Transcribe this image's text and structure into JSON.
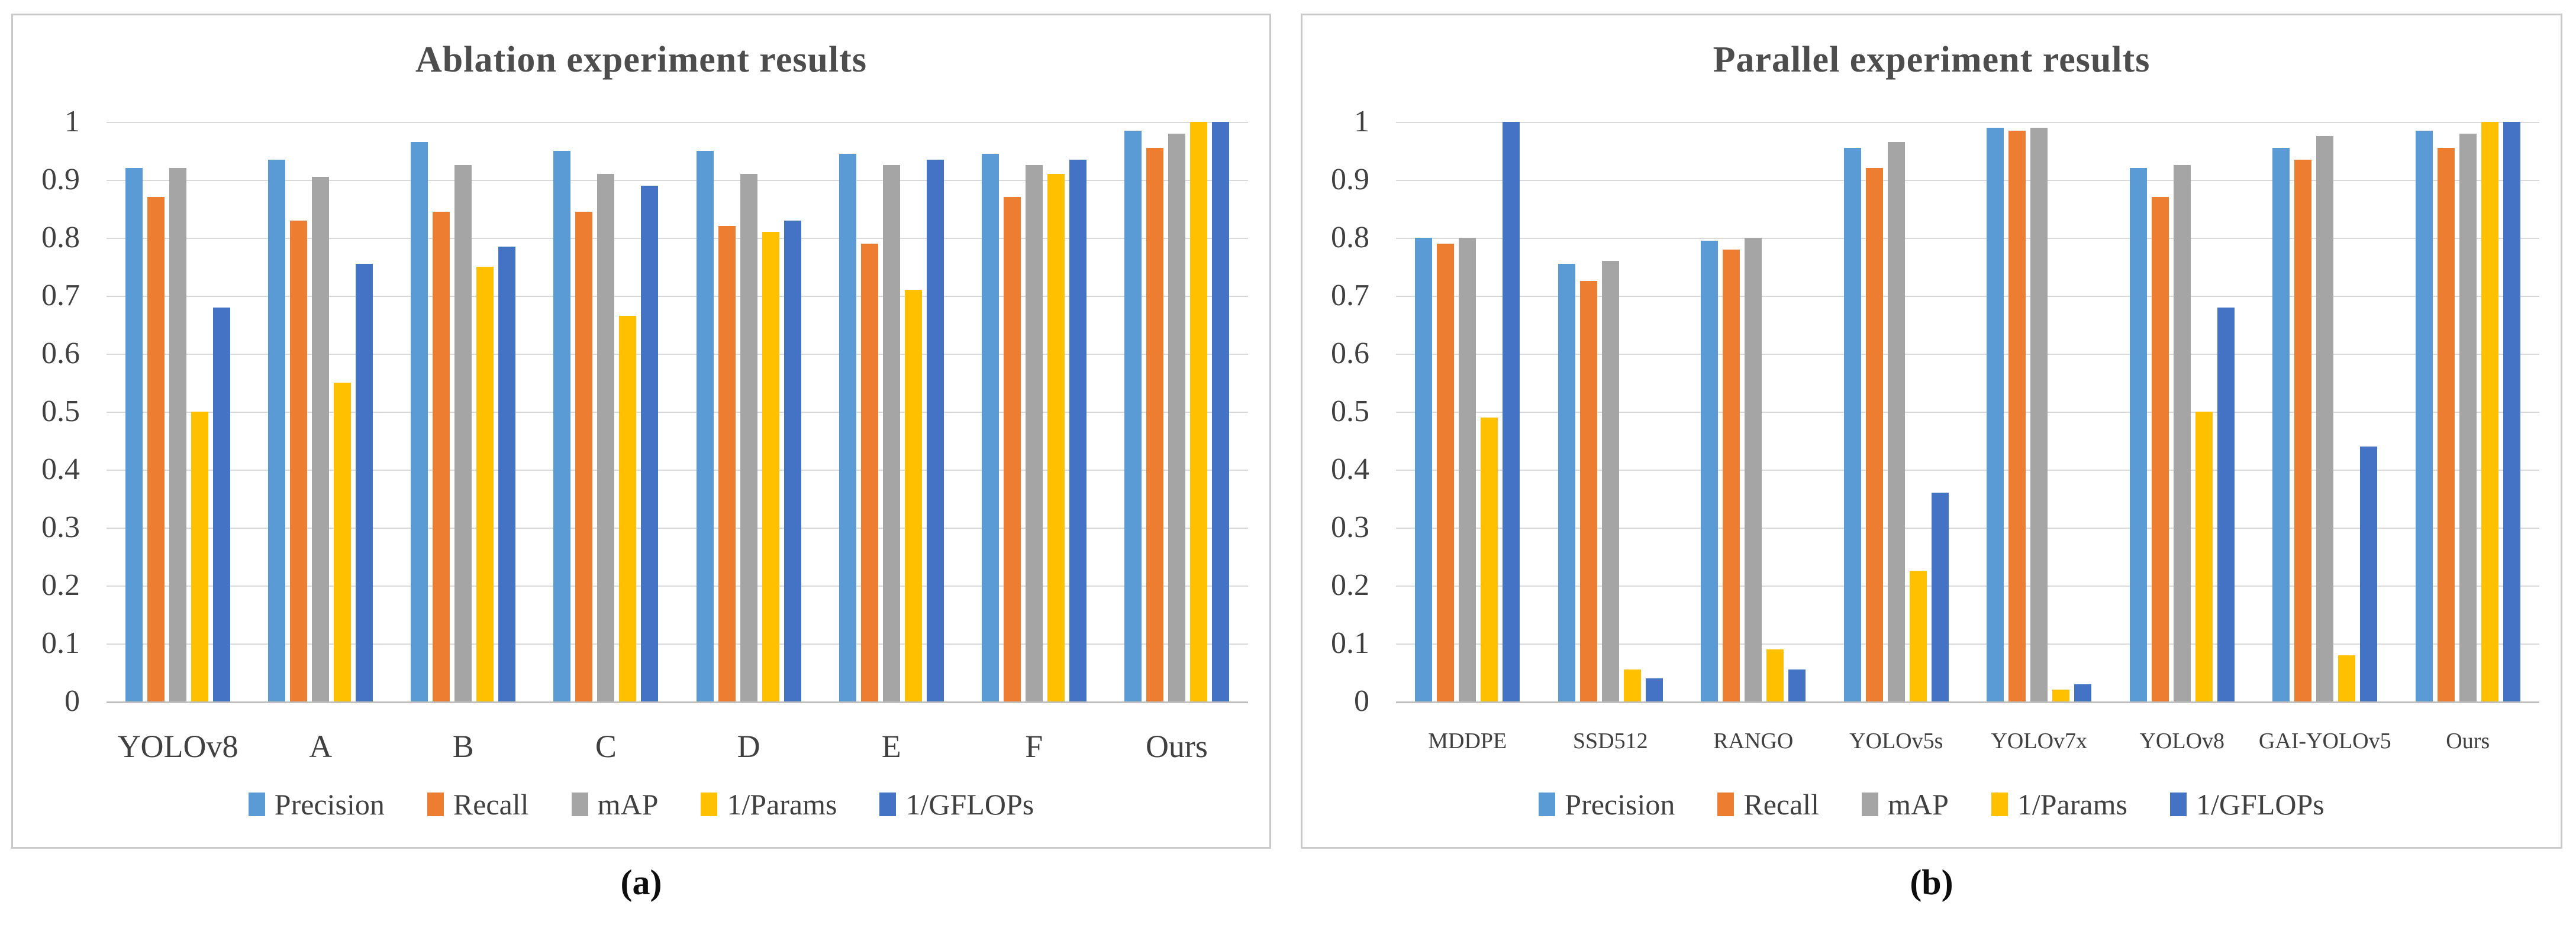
{
  "figure": {
    "captions": {
      "a": "(a)",
      "b": "(b)"
    }
  },
  "style": {
    "gridline_color": "#D9D9D9",
    "baseline_color": "#BFBFBF",
    "axis_text_color": "#404040",
    "title_text_color": "#4D4D4D",
    "panel_border_color": "#C9C9C9",
    "series_colors": {
      "Precision": "#5B9BD5",
      "Recall": "#ED7D31",
      "mAP": "#A5A5A5",
      "1/Params": "#FFC000",
      "1/GFLOPs": "#4472C4"
    }
  },
  "chart_data": [
    {
      "type": "bar",
      "title": "Ablation experiment results",
      "caption": "(a)",
      "categories": [
        "YOLOv8",
        "A",
        "B",
        "C",
        "D",
        "E",
        "F",
        "Ours"
      ],
      "series": [
        {
          "name": "Precision",
          "color": "#5B9BD5",
          "values": [
            0.92,
            0.935,
            0.965,
            0.95,
            0.95,
            0.945,
            0.945,
            0.985
          ]
        },
        {
          "name": "Recall",
          "color": "#ED7D31",
          "values": [
            0.87,
            0.83,
            0.845,
            0.845,
            0.82,
            0.79,
            0.87,
            0.955
          ]
        },
        {
          "name": "mAP",
          "color": "#A5A5A5",
          "values": [
            0.92,
            0.905,
            0.925,
            0.91,
            0.91,
            0.925,
            0.925,
            0.98
          ]
        },
        {
          "name": "1/Params",
          "color": "#FFC000",
          "values": [
            0.5,
            0.55,
            0.75,
            0.665,
            0.81,
            0.71,
            0.91,
            1.0
          ]
        },
        {
          "name": "1/GFLOPs",
          "color": "#4472C4",
          "values": [
            0.68,
            0.755,
            0.785,
            0.89,
            0.83,
            0.935,
            0.935,
            1.0
          ]
        }
      ],
      "ylim": [
        0,
        1
      ],
      "ytick_labels": [
        "1",
        "0.9",
        "0.8",
        "0.7",
        "0.6",
        "0.5",
        "0.4",
        "0.3",
        "0.2",
        "0.1",
        "0"
      ],
      "grid": true,
      "legend_position": "bottom"
    },
    {
      "type": "bar",
      "title": "Parallel experiment results",
      "caption": "(b)",
      "categories": [
        "MDDPE",
        "SSD512",
        "RANGO",
        "YOLOv5s",
        "YOLOv7x",
        "YOLOv8",
        "GAI-YOLOv5",
        "Ours"
      ],
      "series": [
        {
          "name": "Precision",
          "color": "#5B9BD5",
          "values": [
            0.8,
            0.755,
            0.795,
            0.955,
            0.99,
            0.92,
            0.955,
            0.985
          ]
        },
        {
          "name": "Recall",
          "color": "#ED7D31",
          "values": [
            0.79,
            0.725,
            0.78,
            0.92,
            0.985,
            0.87,
            0.935,
            0.955
          ]
        },
        {
          "name": "mAP",
          "color": "#A5A5A5",
          "values": [
            0.8,
            0.76,
            0.8,
            0.965,
            0.99,
            0.925,
            0.975,
            0.98
          ]
        },
        {
          "name": "1/Params",
          "color": "#FFC000",
          "values": [
            0.49,
            0.055,
            0.09,
            0.225,
            0.02,
            0.5,
            0.08,
            1.0
          ]
        },
        {
          "name": "1/GFLOPs",
          "color": "#4472C4",
          "values": [
            1.0,
            0.04,
            0.055,
            0.36,
            0.03,
            0.68,
            0.44,
            1.0
          ]
        }
      ],
      "ylim": [
        0,
        1
      ],
      "ytick_labels": [
        "1",
        "0.9",
        "0.8",
        "0.7",
        "0.6",
        "0.5",
        "0.4",
        "0.3",
        "0.2",
        "0.1",
        "0"
      ],
      "grid": true,
      "legend_position": "bottom"
    }
  ]
}
